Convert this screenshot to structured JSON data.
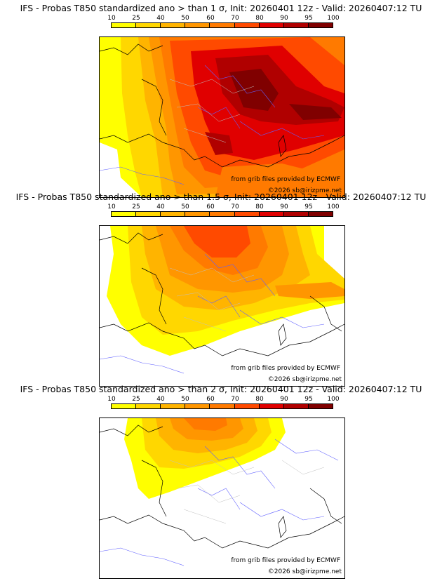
{
  "panels": [
    {
      "title": "IFS - Probas T850  standardized ano > than 1 σ, Init: 20260401 12z - Valid: 20260407:12 TU",
      "source_text": "from grib files provided by ECMWF",
      "copyright": "©2026 sb@irizpme.net"
    },
    {
      "title": "IFS - Probas T850  standardized ano > than 1.5 σ, Init: 20260401 12z - Valid: 20260407:12 TU",
      "source_text": "from grib files provided by ECMWF",
      "copyright": "©2026 sb@irizpme.net"
    },
    {
      "title": "IFS - Probas T850  standardized ano > than 2 σ, Init: 20260401 12z - Valid: 20260407:12 TU",
      "source_text": "from grib files provided by ECMWF",
      "copyright": "©2026 sb@irizpme.net"
    }
  ],
  "colorbar": {
    "levels": [
      "10",
      "25",
      "40",
      "50",
      "60",
      "70",
      "80",
      "90",
      "95",
      "100"
    ],
    "colors": [
      "#ffff00",
      "#ffd700",
      "#ffb400",
      "#ff9600",
      "#ff7a00",
      "#ff4a00",
      "#e00000",
      "#b00000",
      "#800000"
    ]
  }
}
